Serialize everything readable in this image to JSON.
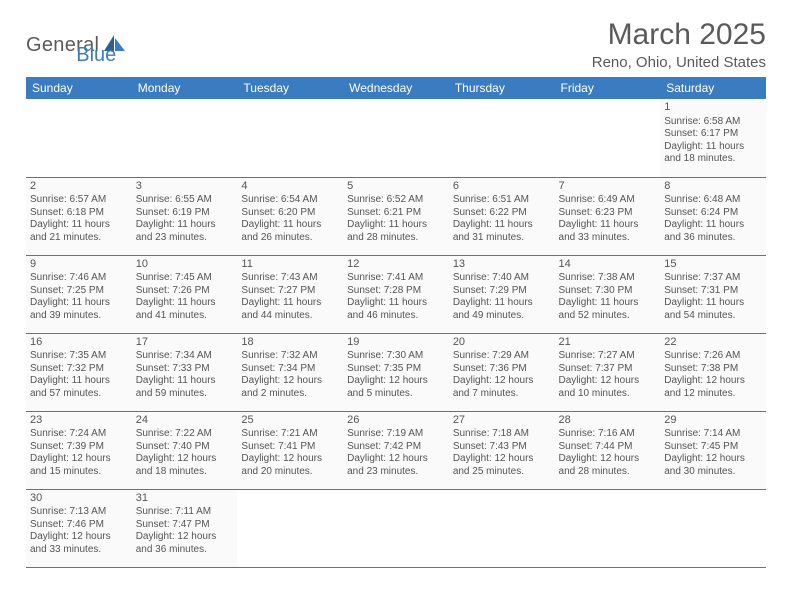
{
  "logo": {
    "text_gray": "General",
    "text_blue": "Blue"
  },
  "title": "March 2025",
  "location": "Reno, Ohio, United States",
  "day_headers": [
    "Sunday",
    "Monday",
    "Tuesday",
    "Wednesday",
    "Thursday",
    "Friday",
    "Saturday"
  ],
  "colors": {
    "header_bg": "#3b7bbf",
    "header_fg": "#ffffff",
    "row_border": "#3b7bbf",
    "cell_bg": "#fafafa",
    "text": "#555555"
  },
  "weeks": [
    [
      null,
      null,
      null,
      null,
      null,
      null,
      {
        "d": "1",
        "sr": "Sunrise: 6:58 AM",
        "ss": "Sunset: 6:17 PM",
        "dl1": "Daylight: 11 hours",
        "dl2": "and 18 minutes."
      }
    ],
    [
      {
        "d": "2",
        "sr": "Sunrise: 6:57 AM",
        "ss": "Sunset: 6:18 PM",
        "dl1": "Daylight: 11 hours",
        "dl2": "and 21 minutes."
      },
      {
        "d": "3",
        "sr": "Sunrise: 6:55 AM",
        "ss": "Sunset: 6:19 PM",
        "dl1": "Daylight: 11 hours",
        "dl2": "and 23 minutes."
      },
      {
        "d": "4",
        "sr": "Sunrise: 6:54 AM",
        "ss": "Sunset: 6:20 PM",
        "dl1": "Daylight: 11 hours",
        "dl2": "and 26 minutes."
      },
      {
        "d": "5",
        "sr": "Sunrise: 6:52 AM",
        "ss": "Sunset: 6:21 PM",
        "dl1": "Daylight: 11 hours",
        "dl2": "and 28 minutes."
      },
      {
        "d": "6",
        "sr": "Sunrise: 6:51 AM",
        "ss": "Sunset: 6:22 PM",
        "dl1": "Daylight: 11 hours",
        "dl2": "and 31 minutes."
      },
      {
        "d": "7",
        "sr": "Sunrise: 6:49 AM",
        "ss": "Sunset: 6:23 PM",
        "dl1": "Daylight: 11 hours",
        "dl2": "and 33 minutes."
      },
      {
        "d": "8",
        "sr": "Sunrise: 6:48 AM",
        "ss": "Sunset: 6:24 PM",
        "dl1": "Daylight: 11 hours",
        "dl2": "and 36 minutes."
      }
    ],
    [
      {
        "d": "9",
        "sr": "Sunrise: 7:46 AM",
        "ss": "Sunset: 7:25 PM",
        "dl1": "Daylight: 11 hours",
        "dl2": "and 39 minutes."
      },
      {
        "d": "10",
        "sr": "Sunrise: 7:45 AM",
        "ss": "Sunset: 7:26 PM",
        "dl1": "Daylight: 11 hours",
        "dl2": "and 41 minutes."
      },
      {
        "d": "11",
        "sr": "Sunrise: 7:43 AM",
        "ss": "Sunset: 7:27 PM",
        "dl1": "Daylight: 11 hours",
        "dl2": "and 44 minutes."
      },
      {
        "d": "12",
        "sr": "Sunrise: 7:41 AM",
        "ss": "Sunset: 7:28 PM",
        "dl1": "Daylight: 11 hours",
        "dl2": "and 46 minutes."
      },
      {
        "d": "13",
        "sr": "Sunrise: 7:40 AM",
        "ss": "Sunset: 7:29 PM",
        "dl1": "Daylight: 11 hours",
        "dl2": "and 49 minutes."
      },
      {
        "d": "14",
        "sr": "Sunrise: 7:38 AM",
        "ss": "Sunset: 7:30 PM",
        "dl1": "Daylight: 11 hours",
        "dl2": "and 52 minutes."
      },
      {
        "d": "15",
        "sr": "Sunrise: 7:37 AM",
        "ss": "Sunset: 7:31 PM",
        "dl1": "Daylight: 11 hours",
        "dl2": "and 54 minutes."
      }
    ],
    [
      {
        "d": "16",
        "sr": "Sunrise: 7:35 AM",
        "ss": "Sunset: 7:32 PM",
        "dl1": "Daylight: 11 hours",
        "dl2": "and 57 minutes."
      },
      {
        "d": "17",
        "sr": "Sunrise: 7:34 AM",
        "ss": "Sunset: 7:33 PM",
        "dl1": "Daylight: 11 hours",
        "dl2": "and 59 minutes."
      },
      {
        "d": "18",
        "sr": "Sunrise: 7:32 AM",
        "ss": "Sunset: 7:34 PM",
        "dl1": "Daylight: 12 hours",
        "dl2": "and 2 minutes."
      },
      {
        "d": "19",
        "sr": "Sunrise: 7:30 AM",
        "ss": "Sunset: 7:35 PM",
        "dl1": "Daylight: 12 hours",
        "dl2": "and 5 minutes."
      },
      {
        "d": "20",
        "sr": "Sunrise: 7:29 AM",
        "ss": "Sunset: 7:36 PM",
        "dl1": "Daylight: 12 hours",
        "dl2": "and 7 minutes."
      },
      {
        "d": "21",
        "sr": "Sunrise: 7:27 AM",
        "ss": "Sunset: 7:37 PM",
        "dl1": "Daylight: 12 hours",
        "dl2": "and 10 minutes."
      },
      {
        "d": "22",
        "sr": "Sunrise: 7:26 AM",
        "ss": "Sunset: 7:38 PM",
        "dl1": "Daylight: 12 hours",
        "dl2": "and 12 minutes."
      }
    ],
    [
      {
        "d": "23",
        "sr": "Sunrise: 7:24 AM",
        "ss": "Sunset: 7:39 PM",
        "dl1": "Daylight: 12 hours",
        "dl2": "and 15 minutes."
      },
      {
        "d": "24",
        "sr": "Sunrise: 7:22 AM",
        "ss": "Sunset: 7:40 PM",
        "dl1": "Daylight: 12 hours",
        "dl2": "and 18 minutes."
      },
      {
        "d": "25",
        "sr": "Sunrise: 7:21 AM",
        "ss": "Sunset: 7:41 PM",
        "dl1": "Daylight: 12 hours",
        "dl2": "and 20 minutes."
      },
      {
        "d": "26",
        "sr": "Sunrise: 7:19 AM",
        "ss": "Sunset: 7:42 PM",
        "dl1": "Daylight: 12 hours",
        "dl2": "and 23 minutes."
      },
      {
        "d": "27",
        "sr": "Sunrise: 7:18 AM",
        "ss": "Sunset: 7:43 PM",
        "dl1": "Daylight: 12 hours",
        "dl2": "and 25 minutes."
      },
      {
        "d": "28",
        "sr": "Sunrise: 7:16 AM",
        "ss": "Sunset: 7:44 PM",
        "dl1": "Daylight: 12 hours",
        "dl2": "and 28 minutes."
      },
      {
        "d": "29",
        "sr": "Sunrise: 7:14 AM",
        "ss": "Sunset: 7:45 PM",
        "dl1": "Daylight: 12 hours",
        "dl2": "and 30 minutes."
      }
    ],
    [
      {
        "d": "30",
        "sr": "Sunrise: 7:13 AM",
        "ss": "Sunset: 7:46 PM",
        "dl1": "Daylight: 12 hours",
        "dl2": "and 33 minutes."
      },
      {
        "d": "31",
        "sr": "Sunrise: 7:11 AM",
        "ss": "Sunset: 7:47 PM",
        "dl1": "Daylight: 12 hours",
        "dl2": "and 36 minutes."
      },
      null,
      null,
      null,
      null,
      null
    ]
  ]
}
